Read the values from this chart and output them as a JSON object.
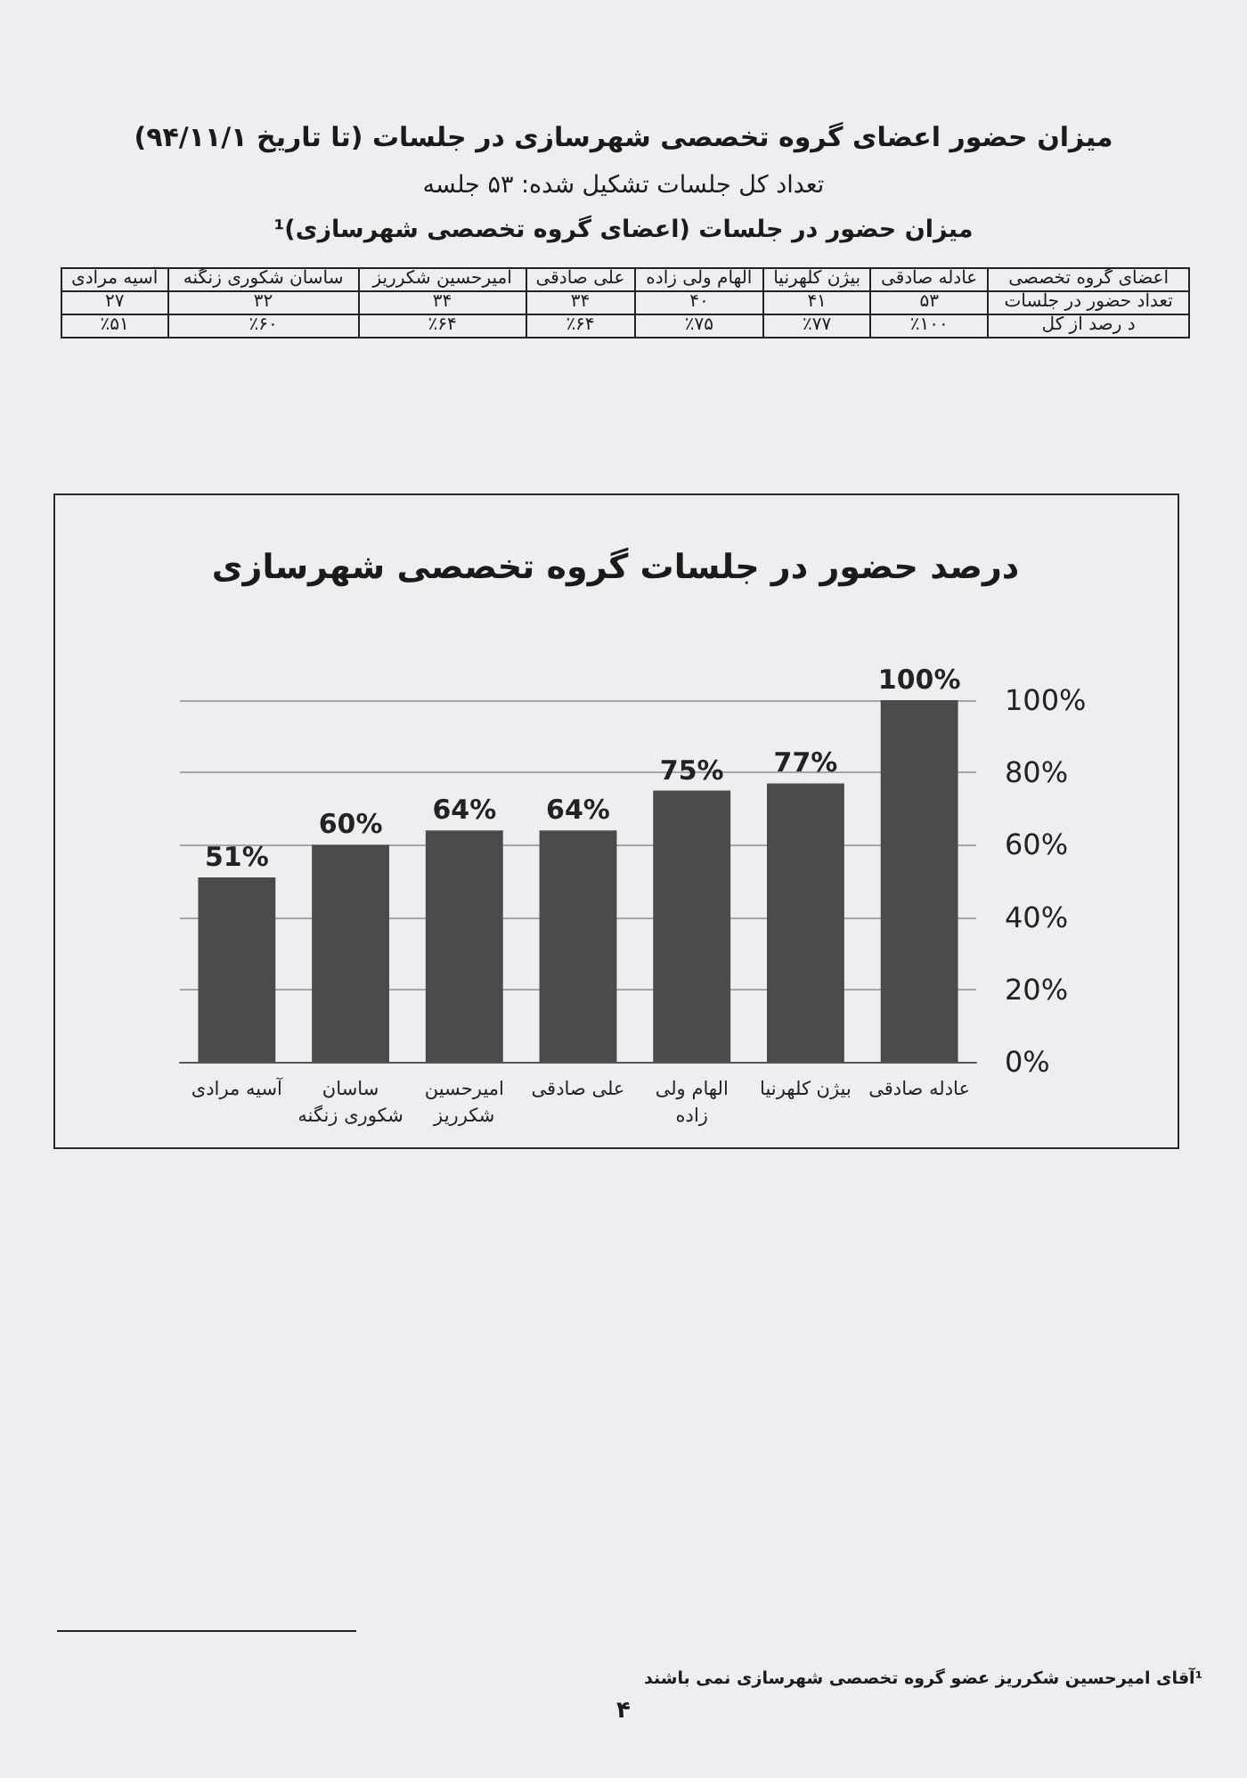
{
  "chart_data": [
    {
      "type": "other",
      "title": "میزان حضور اعضای گروه تخصصی شهرسازی در جلسات (تا تاریخ ۹۴/۱۱/۱)",
      "subtitle": "تعداد کل جلسات تشکیل شده: ۵۳ جلسه",
      "annotations": [
        "میزان حضور در جلسات (اعضای گروه تخصصی شهرسازی)¹"
      ],
      "xlabel": "اعضای گروه تخصصی",
      "categories": [
        "آسیه مرادی",
        "ساسان شکوری زنگنه",
        "امیرحسین شکرریز",
        "علی صادقی",
        "الهام ولی زاده",
        "بیژن کلهرنیا",
        "عادله صادقی"
      ],
      "series": [
        {
          "name": "تعداد حضور در جلسات",
          "values": [
            27,
            32,
            34,
            34,
            40,
            41,
            53
          ],
          "value_labels": [
            "۲۷",
            "۳۲",
            "۳۴",
            "۳۴",
            "۴۰",
            "۴۱",
            "۵۳"
          ]
        },
        {
          "name": "د رصد از کل",
          "values": [
            51,
            60,
            64,
            64,
            75,
            77,
            100
          ],
          "value_labels": [
            "٪۵۱",
            "٪۶۰",
            "٪۶۴",
            "٪۶۴",
            "٪۷۵",
            "٪۷۷",
            "٪۱۰۰"
          ]
        }
      ]
    },
    {
      "type": "bar",
      "title": "درصد حضور در جلسات گروه تخصصی شهرسازی",
      "categories": [
        "آسیه مرادی",
        "ساسان شکوری زنگنه",
        "امیرحسین شکرریز",
        "علی صادقی",
        "الهام ولی زاده",
        "بیژن کلهرنیا",
        "عادله صادقی"
      ],
      "values": [
        51,
        60,
        64,
        64,
        75,
        77,
        100
      ],
      "value_labels": [
        "51%",
        "60%",
        "64%",
        "64%",
        "75%",
        "77%",
        "100%"
      ],
      "color": "#4a4a4a",
      "ylim": [
        0,
        100
      ],
      "yticks": [
        {
          "value": 0,
          "label": "0%"
        },
        {
          "value": 20,
          "label": "20%"
        },
        {
          "value": 40,
          "label": "40%"
        },
        {
          "value": 60,
          "label": "60%"
        },
        {
          "value": 80,
          "label": "80%"
        },
        {
          "value": 100,
          "label": "100%"
        }
      ],
      "grid": "y",
      "annotations": [
        "¹آقای امیرحسین شکرریز عضو گروه تخصصی شهرسازی نمی باشند",
        "۴"
      ]
    }
  ]
}
